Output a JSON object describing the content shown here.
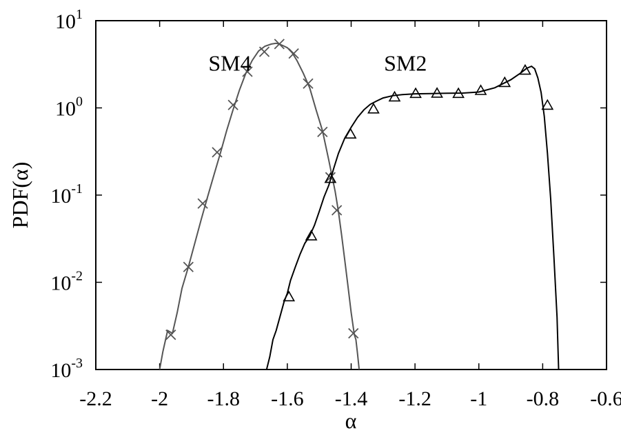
{
  "chart_data": {
    "type": "line",
    "title": "",
    "xlabel": "α",
    "ylabel": "PDF(α)",
    "xlim": [
      -2.2,
      -0.6
    ],
    "ylim": [
      0.001,
      10
    ],
    "yscale": "log",
    "grid": false,
    "x_ticks": [
      {
        "value": -2.2,
        "label": "-2.2"
      },
      {
        "value": -2.0,
        "label": "-2"
      },
      {
        "value": -1.8,
        "label": "-1.8"
      },
      {
        "value": -1.6,
        "label": "-1.6"
      },
      {
        "value": -1.4,
        "label": "-1.4"
      },
      {
        "value": -1.2,
        "label": "-1.2"
      },
      {
        "value": -1.0,
        "label": "-1"
      },
      {
        "value": -0.8,
        "label": "-0.8"
      },
      {
        "value": -0.6,
        "label": "-0.6"
      }
    ],
    "y_ticks": [
      {
        "value": 0.001,
        "base": "10",
        "exp": "-3"
      },
      {
        "value": 0.01,
        "base": "10",
        "exp": "-2"
      },
      {
        "value": 0.1,
        "base": "10",
        "exp": "-1"
      },
      {
        "value": 1,
        "base": "10",
        "exp": "0"
      },
      {
        "value": 10,
        "base": "10",
        "exp": "1"
      }
    ],
    "series": [
      {
        "name": "SM4",
        "color": "#555555",
        "marker": "x",
        "label_at": {
          "x": -1.78,
          "y": 3.2
        },
        "curve": {
          "x": [
            -2.0,
            -1.99,
            -1.975,
            -1.96,
            -1.945,
            -1.93,
            -1.91,
            -1.89,
            -1.87,
            -1.85,
            -1.83,
            -1.81,
            -1.79,
            -1.77,
            -1.75,
            -1.73,
            -1.71,
            -1.69,
            -1.67,
            -1.65,
            -1.635,
            -1.625,
            -1.615,
            -1.6,
            -1.585,
            -1.57,
            -1.55,
            -1.53,
            -1.51,
            -1.49,
            -1.47,
            -1.45,
            -1.44,
            -1.43,
            -1.42,
            -1.41,
            -1.4,
            -1.39,
            -1.385,
            -1.38,
            -1.375
          ],
          "y": [
            0.001,
            0.0016,
            0.0028,
            0.0026,
            0.0045,
            0.0085,
            0.015,
            0.028,
            0.052,
            0.095,
            0.17,
            0.3,
            0.55,
            0.95,
            1.6,
            2.5,
            3.5,
            4.5,
            5.1,
            5.4,
            5.5,
            5.4,
            5.2,
            4.9,
            4.3,
            3.5,
            2.5,
            1.7,
            0.95,
            0.55,
            0.25,
            0.11,
            0.065,
            0.035,
            0.018,
            0.009,
            0.0045,
            0.0025,
            0.0022,
            0.0015,
            0.001
          ]
        },
        "markers": {
          "x": [
            -1.965,
            -1.91,
            -1.865,
            -1.82,
            -1.77,
            -1.725,
            -1.672,
            -1.625,
            -1.58,
            -1.535,
            -1.49,
            -1.465,
            -1.445,
            -1.393
          ],
          "y": [
            0.0025,
            0.015,
            0.08,
            0.31,
            1.08,
            2.6,
            4.4,
            5.4,
            4.2,
            1.9,
            0.53,
            0.16,
            0.067,
            0.0026
          ]
        }
      },
      {
        "name": "SM2",
        "color": "#000000",
        "marker": "triangle",
        "label_at": {
          "x": -1.23,
          "y": 3.2
        },
        "curve": {
          "x": [
            -1.665,
            -1.655,
            -1.645,
            -1.635,
            -1.625,
            -1.61,
            -1.6,
            -1.59,
            -1.575,
            -1.56,
            -1.545,
            -1.53,
            -1.515,
            -1.5,
            -1.485,
            -1.47,
            -1.455,
            -1.44,
            -1.42,
            -1.4,
            -1.38,
            -1.36,
            -1.34,
            -1.32,
            -1.3,
            -1.27,
            -1.24,
            -1.2,
            -1.15,
            -1.1,
            -1.05,
            -1.0,
            -0.95,
            -0.9,
            -0.87,
            -0.85,
            -0.835,
            -0.825,
            -0.815,
            -0.805,
            -0.795,
            -0.785,
            -0.775,
            -0.765,
            -0.755,
            -0.75
          ],
          "y": [
            0.001,
            0.0014,
            0.0022,
            0.0028,
            0.0038,
            0.006,
            0.0075,
            0.0105,
            0.015,
            0.021,
            0.028,
            0.034,
            0.045,
            0.065,
            0.095,
            0.13,
            0.2,
            0.3,
            0.45,
            0.6,
            0.78,
            0.95,
            1.1,
            1.2,
            1.3,
            1.38,
            1.42,
            1.45,
            1.46,
            1.47,
            1.48,
            1.52,
            1.7,
            2.1,
            2.5,
            2.85,
            3.0,
            2.8,
            2.2,
            1.5,
            0.8,
            0.3,
            0.09,
            0.02,
            0.004,
            0.001
          ]
        },
        "markers": {
          "x": [
            -1.595,
            -1.525,
            -1.465,
            -1.402,
            -1.33,
            -1.264,
            -1.198,
            -1.131,
            -1.064,
            -0.994,
            -0.919,
            -0.855,
            -0.785
          ],
          "y": [
            0.0068,
            0.034,
            0.155,
            0.5,
            0.97,
            1.33,
            1.46,
            1.47,
            1.46,
            1.58,
            1.95,
            2.7,
            1.07
          ]
        }
      }
    ]
  }
}
